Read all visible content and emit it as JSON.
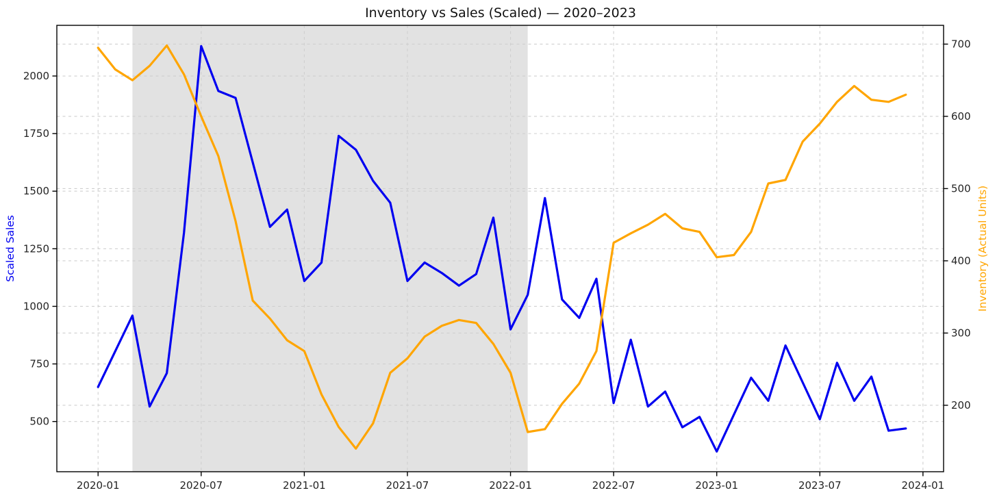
{
  "figure": {
    "background": "#ffffff",
    "grid_color": "#cfcfcf",
    "spine_color": "#000000",
    "tick_label_color": "#242424"
  },
  "chart_data": {
    "type": "line",
    "title": "Inventory vs Sales (Scaled) — 2020–2023",
    "grid": true,
    "legend": "none",
    "shaded_region": {
      "from": "2020-03",
      "to": "2022-02",
      "color": "#e2e2e2"
    },
    "x_axis": {
      "range_months": [
        -2.4,
        49.2
      ],
      "tick_labels": [
        "2020-01",
        "2020-07",
        "2021-01",
        "2021-07",
        "2022-01",
        "2022-07",
        "2023-01",
        "2023-07",
        "2024-01"
      ]
    },
    "left_axis": {
      "label": "Scaled Sales",
      "color": "#0000f0",
      "ticks": [
        500,
        750,
        1000,
        1250,
        1500,
        1750,
        2000
      ],
      "range": [
        282,
        2220
      ]
    },
    "right_axis": {
      "label": "Inventory (Actual Units)",
      "color": "#ffa500",
      "ticks": [
        200,
        300,
        400,
        500,
        600,
        700
      ],
      "range": [
        108,
        726
      ]
    },
    "months": [
      "2020-01",
      "2020-02",
      "2020-03",
      "2020-04",
      "2020-05",
      "2020-06",
      "2020-07",
      "2020-08",
      "2020-09",
      "2020-10",
      "2020-11",
      "2020-12",
      "2021-01",
      "2021-02",
      "2021-03",
      "2021-04",
      "2021-05",
      "2021-06",
      "2021-07",
      "2021-08",
      "2021-09",
      "2021-10",
      "2021-11",
      "2021-12",
      "2022-01",
      "2022-02",
      "2022-03",
      "2022-04",
      "2022-05",
      "2022-06",
      "2022-07",
      "2022-08",
      "2022-09",
      "2022-10",
      "2022-11",
      "2022-12",
      "2023-01",
      "2023-02",
      "2023-03",
      "2023-04",
      "2023-05",
      "2023-06",
      "2023-07",
      "2023-08",
      "2023-09",
      "2023-10",
      "2023-11",
      "2023-12"
    ],
    "series": [
      {
        "name": "Scaled Sales",
        "axis": "left",
        "color": "#0000f0",
        "values": [
          650,
          805,
          960,
          565,
          710,
          1320,
          2130,
          1935,
          1905,
          1625,
          1345,
          1420,
          1110,
          1190,
          1740,
          1680,
          1545,
          1450,
          1110,
          1190,
          1145,
          1090,
          1140,
          1385,
          900,
          1050,
          1470,
          1030,
          950,
          1120,
          580,
          855,
          565,
          630,
          475,
          520,
          370,
          530,
          690,
          590,
          830,
          670,
          510,
          755,
          590,
          695,
          460,
          470
        ]
      },
      {
        "name": "Inventory (Actual Units)",
        "axis": "right",
        "color": "#ffa500",
        "values": [
          695,
          665,
          650,
          670,
          698,
          658,
          600,
          545,
          455,
          345,
          320,
          290,
          275,
          215,
          170,
          140,
          175,
          245,
          265,
          295,
          310,
          318,
          314,
          285,
          245,
          163,
          167,
          202,
          230,
          275,
          425,
          438,
          450,
          465,
          445,
          440,
          405,
          408,
          440,
          507,
          512,
          565,
          590,
          620,
          642,
          623,
          620,
          630
        ]
      }
    ]
  }
}
